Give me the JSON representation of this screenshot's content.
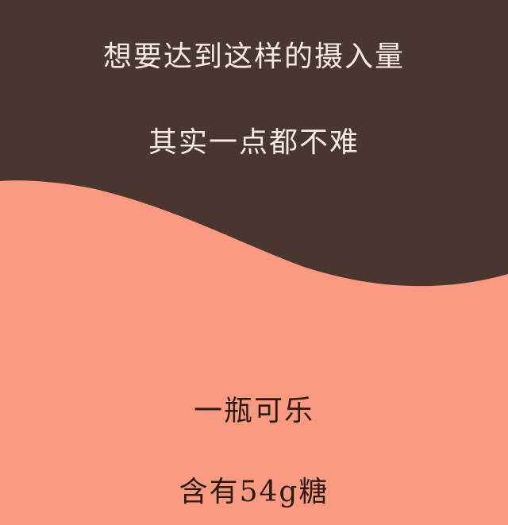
{
  "top_text": {
    "line1": "想要达到这样的摄入量",
    "line2": "其实一点都不难"
  },
  "bottom_text": {
    "line1": "一瓶可乐",
    "line2": "含有54g糖"
  },
  "colors": {
    "top_background": "#4a3630",
    "bottom_background": "#fa9a80",
    "top_text": "#f6ece4",
    "bottom_text": "#2a1a12"
  }
}
